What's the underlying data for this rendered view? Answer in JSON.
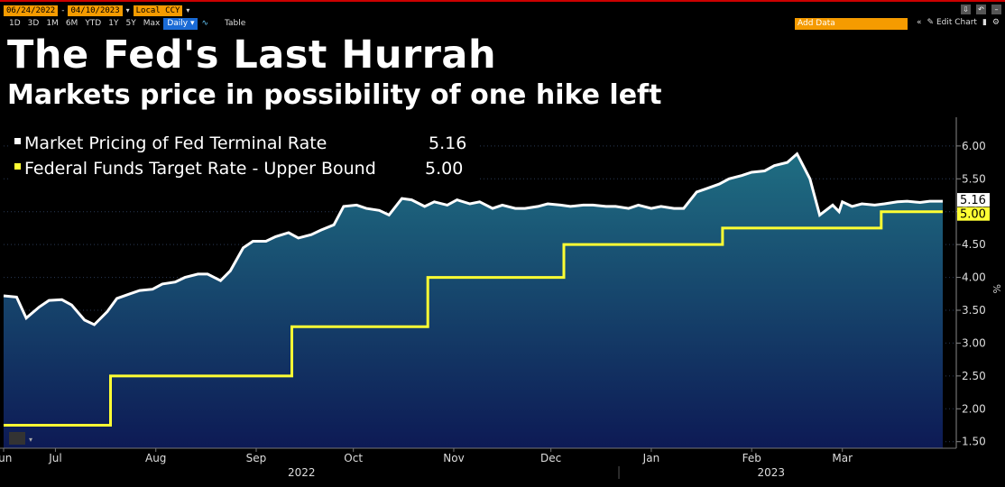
{
  "toolbar": {
    "start_date": "06/24/2022",
    "end_date": "04/10/2023",
    "currency": "Local CCY",
    "ranges": [
      "1D",
      "3D",
      "1M",
      "6M",
      "YTD",
      "1Y",
      "5Y",
      "Max"
    ],
    "frequency": "Daily ▾",
    "table_label": "Table",
    "add_data_placeholder": "Add Data",
    "edit_chart_label": "Edit Chart",
    "collapse_symbol": "«"
  },
  "title": "The Fed's Last Hurrah",
  "subtitle": "Markets price in possibility of one hike left",
  "chart_data": {
    "type": "line",
    "title": "The Fed's Last Hurrah",
    "subtitle": "Markets price in possibility of one hike left",
    "ylabel": "%",
    "ylim": [
      1.4,
      6.3
    ],
    "yticks": [
      "1.50",
      "2.00",
      "2.50",
      "3.00",
      "3.50",
      "4.00",
      "4.50",
      "5.00",
      "5.50",
      "6.00"
    ],
    "xlim": [
      "2022-06-24",
      "2023-04-10"
    ],
    "month_ticks": [
      {
        "label": "Jun",
        "date": "2022-06-24"
      },
      {
        "label": "Jul",
        "date": "2022-07-10"
      },
      {
        "label": "Aug",
        "date": "2022-08-10"
      },
      {
        "label": "Sep",
        "date": "2022-09-10"
      },
      {
        "label": "Oct",
        "date": "2022-10-10"
      },
      {
        "label": "Nov",
        "date": "2022-11-10"
      },
      {
        "label": "Dec",
        "date": "2022-12-10"
      },
      {
        "label": "Jan",
        "date": "2023-01-10"
      },
      {
        "label": "Feb",
        "date": "2023-02-10"
      },
      {
        "label": "Mar",
        "date": "2023-03-10"
      }
    ],
    "year_labels": [
      {
        "label": "2022",
        "date": "2022-09-24"
      },
      {
        "label": "2023",
        "date": "2023-02-16"
      }
    ],
    "legend_position": "top-left",
    "grid": true,
    "series": [
      {
        "name": "Market Pricing of Fed Terminal Rate",
        "last_value": "5.16",
        "color": "#ffffff",
        "fill_top": "#1f6e82",
        "fill_bottom": "#0d1a55",
        "x": [
          "2022-06-24",
          "2022-06-28",
          "2022-07-01",
          "2022-07-05",
          "2022-07-08",
          "2022-07-12",
          "2022-07-15",
          "2022-07-19",
          "2022-07-22",
          "2022-07-26",
          "2022-07-29",
          "2022-08-02",
          "2022-08-05",
          "2022-08-09",
          "2022-08-12",
          "2022-08-16",
          "2022-08-19",
          "2022-08-23",
          "2022-08-26",
          "2022-08-30",
          "2022-09-02",
          "2022-09-06",
          "2022-09-09",
          "2022-09-13",
          "2022-09-16",
          "2022-09-20",
          "2022-09-23",
          "2022-09-27",
          "2022-09-30",
          "2022-10-04",
          "2022-10-07",
          "2022-10-11",
          "2022-10-14",
          "2022-10-18",
          "2022-10-21",
          "2022-10-25",
          "2022-10-28",
          "2022-11-01",
          "2022-11-04",
          "2022-11-08",
          "2022-11-11",
          "2022-11-15",
          "2022-11-18",
          "2022-11-22",
          "2022-11-25",
          "2022-11-29",
          "2022-12-02",
          "2022-12-06",
          "2022-12-09",
          "2022-12-13",
          "2022-12-16",
          "2022-12-20",
          "2022-12-23",
          "2022-12-27",
          "2022-12-30",
          "2023-01-03",
          "2023-01-06",
          "2023-01-10",
          "2023-01-13",
          "2023-01-17",
          "2023-01-20",
          "2023-01-24",
          "2023-01-27",
          "2023-01-31",
          "2023-02-03",
          "2023-02-07",
          "2023-02-10",
          "2023-02-14",
          "2023-02-17",
          "2023-02-21",
          "2023-02-24",
          "2023-02-28",
          "2023-03-03",
          "2023-03-07",
          "2023-03-09",
          "2023-03-10",
          "2023-03-13",
          "2023-03-16",
          "2023-03-20",
          "2023-03-23",
          "2023-03-27",
          "2023-03-30",
          "2023-04-03",
          "2023-04-06",
          "2023-04-10"
        ],
        "values": [
          3.72,
          3.7,
          3.38,
          3.55,
          3.65,
          3.66,
          3.58,
          3.35,
          3.28,
          3.48,
          3.68,
          3.75,
          3.8,
          3.82,
          3.9,
          3.93,
          4.0,
          4.05,
          4.05,
          3.95,
          4.1,
          4.45,
          4.55,
          4.55,
          4.62,
          4.68,
          4.6,
          4.65,
          4.72,
          4.8,
          5.08,
          5.1,
          5.05,
          5.02,
          4.95,
          5.2,
          5.18,
          5.08,
          5.15,
          5.1,
          5.18,
          5.12,
          5.15,
          5.05,
          5.1,
          5.05,
          5.05,
          5.08,
          5.12,
          5.1,
          5.08,
          5.1,
          5.1,
          5.08,
          5.08,
          5.05,
          5.1,
          5.05,
          5.08,
          5.05,
          5.05,
          5.3,
          5.35,
          5.42,
          5.5,
          5.55,
          5.6,
          5.62,
          5.7,
          5.75,
          5.88,
          5.5,
          4.95,
          5.1,
          5.0,
          5.15,
          5.08,
          5.12,
          5.1,
          5.12,
          5.15,
          5.16,
          5.14,
          5.16,
          5.16
        ]
      },
      {
        "name": "Federal Funds Target Rate - Upper Bound",
        "last_value": "5.00",
        "color": "#ffff33",
        "x": [
          "2022-06-24",
          "2022-07-27",
          "2022-09-21",
          "2022-11-02",
          "2022-12-14",
          "2023-02-01",
          "2023-03-22",
          "2023-04-10"
        ],
        "values": [
          1.75,
          2.5,
          3.25,
          4.0,
          4.5,
          4.75,
          5.0,
          5.0
        ]
      }
    ]
  }
}
